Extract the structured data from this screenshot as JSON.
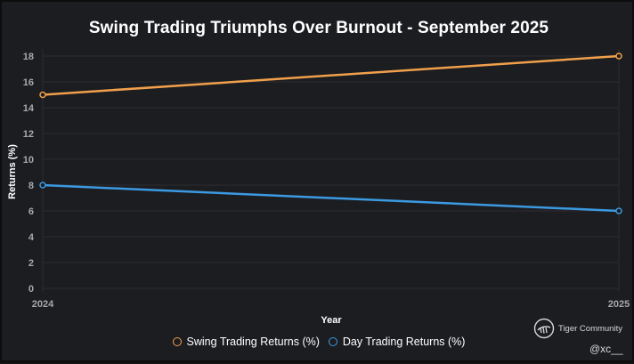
{
  "chart_data": {
    "type": "line",
    "title": "Swing Trading Triumphs Over Burnout - September 2025",
    "xlabel": "Year",
    "ylabel": "Returns (%)",
    "x": [
      "2024",
      "2025"
    ],
    "ylim": [
      0,
      18
    ],
    "yticks": [
      0,
      2,
      4,
      6,
      8,
      10,
      12,
      14,
      16,
      18
    ],
    "grid": true,
    "legend_position": "bottom",
    "series": [
      {
        "name": "Swing Trading Returns (%)",
        "values": [
          15,
          18
        ],
        "color": "#f0a04b"
      },
      {
        "name": "Day Trading Returns (%)",
        "values": [
          8,
          6
        ],
        "color": "#3b9ae1"
      }
    ]
  },
  "brand": {
    "name": "Tiger Community",
    "icon": "tiger-logo-icon"
  },
  "handle": "@xc__"
}
